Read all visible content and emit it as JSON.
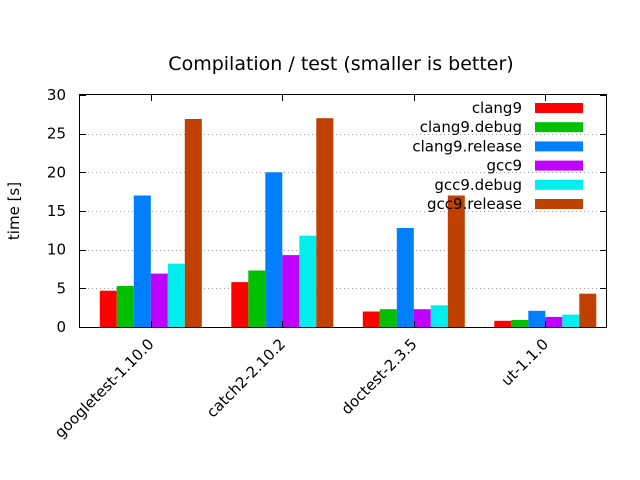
{
  "chart_data": {
    "type": "bar",
    "title": "Compilation / test (smaller is better)",
    "xlabel": "",
    "ylabel": "time [s]",
    "ylim": [
      0,
      30
    ],
    "yticks": [
      0,
      5,
      10,
      15,
      20,
      25,
      30
    ],
    "grid": true,
    "legend_position": "top-right",
    "categories": [
      "googletest-1.10.0",
      "catch2-2.10.2",
      "doctest-2.3.5",
      "ut-1.1.0"
    ],
    "series": [
      {
        "name": "clang9",
        "color": "#ff0000",
        "values": [
          4.7,
          5.8,
          2.0,
          0.8
        ]
      },
      {
        "name": "clang9.debug",
        "color": "#00c000",
        "values": [
          5.3,
          7.3,
          2.3,
          0.9
        ]
      },
      {
        "name": "clang9.release",
        "color": "#0080ff",
        "values": [
          17.0,
          20.0,
          12.8,
          2.1
        ]
      },
      {
        "name": "gcc9",
        "color": "#c000ff",
        "values": [
          6.9,
          9.3,
          2.3,
          1.3
        ]
      },
      {
        "name": "gcc9.debug",
        "color": "#00eeee",
        "values": [
          8.2,
          11.8,
          2.8,
          1.6
        ]
      },
      {
        "name": "gcc9.release",
        "color": "#c04000",
        "values": [
          26.9,
          27.0,
          17.0,
          4.3
        ]
      }
    ]
  }
}
